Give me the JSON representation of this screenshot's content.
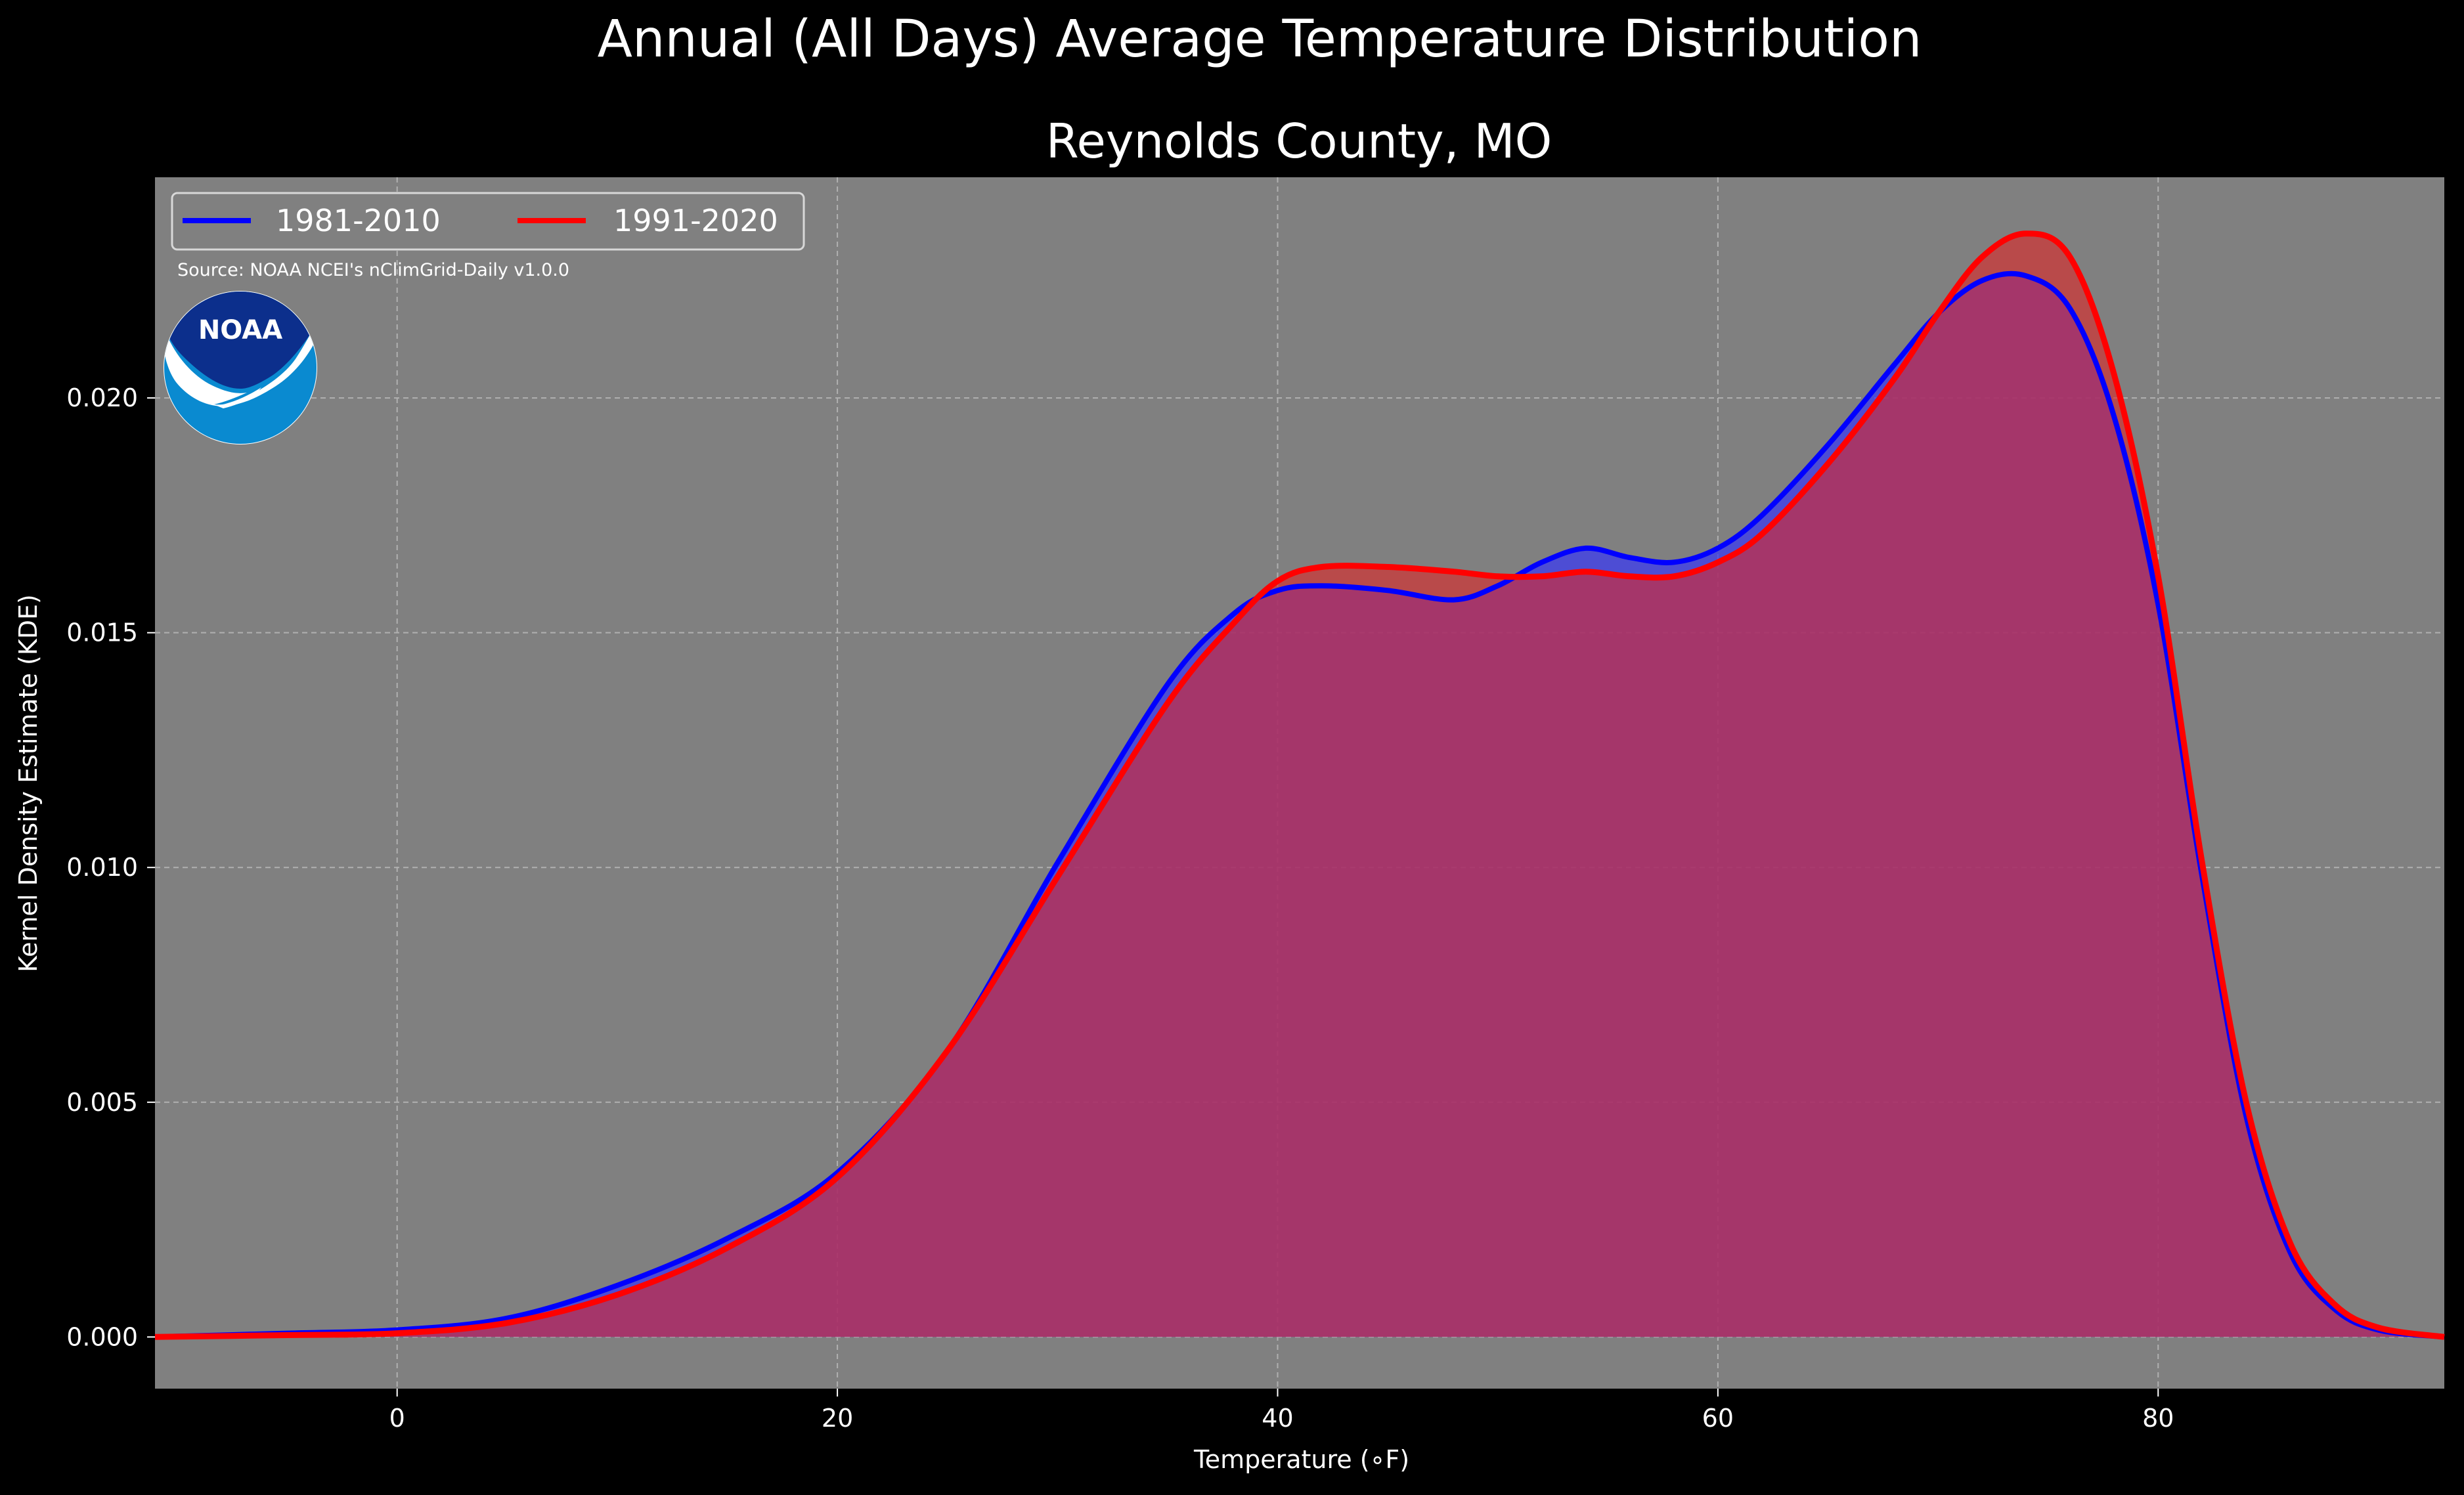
{
  "chart_data": {
    "type": "area",
    "suptitle": "Annual (All Days) Average Temperature Distribution",
    "title": "Reynolds County, MO",
    "xlabel": "Temperature (∘F)",
    "ylabel": "Kernel Density Estimate (KDE)",
    "xlim": [
      -11,
      93
    ],
    "ylim": [
      -0.0011,
      0.0247
    ],
    "xticks": [
      0,
      20,
      40,
      60,
      80
    ],
    "yticks": [
      0.0,
      0.005,
      0.01,
      0.015,
      0.02
    ],
    "ytick_labels": [
      "0.000",
      "0.005",
      "0.010",
      "0.015",
      "0.020"
    ],
    "grid": true,
    "legend_position": "top-left",
    "source": "Source: NOAA NCEI's nClimGrid-Daily v1.0.0",
    "logo_text": "NOAA",
    "x": [
      -11,
      -5,
      0,
      5,
      10,
      15,
      20,
      25,
      30,
      35,
      38,
      40,
      42,
      45,
      48,
      50,
      52,
      54,
      56,
      58,
      60,
      62,
      65,
      68,
      70,
      72,
      74,
      76,
      78,
      80,
      82,
      84,
      86,
      88,
      90,
      93
    ],
    "series": [
      {
        "name": "1981-2010",
        "color": "#0000ff",
        "fill": "rgba(60,60,240,0.75)",
        "values": [
          0.0,
          8e-05,
          0.00015,
          0.0004,
          0.0011,
          0.0021,
          0.0035,
          0.0061,
          0.0101,
          0.0139,
          0.0154,
          0.0159,
          0.016,
          0.0159,
          0.0157,
          0.016,
          0.0165,
          0.0168,
          0.0166,
          0.0165,
          0.0168,
          0.0175,
          0.019,
          0.0207,
          0.0218,
          0.0225,
          0.0226,
          0.0219,
          0.0196,
          0.0156,
          0.0098,
          0.0047,
          0.0018,
          0.0006,
          0.00015,
          0.0
        ]
      },
      {
        "name": "1991-2020",
        "color": "#ff0000",
        "fill": "rgba(220,40,40,0.62)",
        "values": [
          0.0,
          4e-05,
          8e-05,
          0.0003,
          0.0009,
          0.0019,
          0.0034,
          0.0061,
          0.0098,
          0.0135,
          0.0152,
          0.0161,
          0.0164,
          0.0164,
          0.0163,
          0.0162,
          0.0162,
          0.0163,
          0.0162,
          0.0162,
          0.0165,
          0.0171,
          0.0186,
          0.0204,
          0.0218,
          0.023,
          0.0235,
          0.023,
          0.0205,
          0.0162,
          0.0101,
          0.005,
          0.002,
          0.0007,
          0.0002,
          0.0
        ]
      }
    ]
  }
}
